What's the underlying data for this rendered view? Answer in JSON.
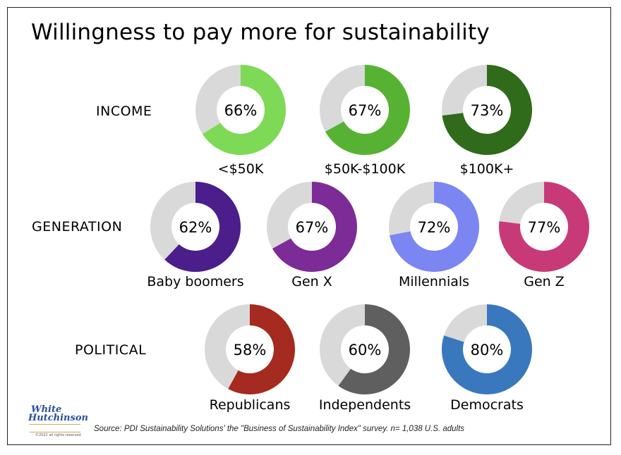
{
  "title": "Willingness to pay more for sustainability",
  "source": "Source: PDI Sustainability Solutions' the \"Business of Sustainability Index\" survey. n= 1,038 U.S. adults",
  "logo": {
    "line1": "White",
    "line2": "Hutchinson",
    "copyright": "©2022 all rights reserved"
  },
  "colors": {
    "remainder": "#d9d9d9",
    "income_low": "#7ed957",
    "income_mid": "#57b233",
    "income_high": "#2f6b1a",
    "boomers": "#4b1e8c",
    "genx": "#7d2b96",
    "millennials": "#7b86f2",
    "genz": "#c73a77",
    "republicans": "#a52a1f",
    "independents": "#5f5f5f",
    "democrats": "#3a78bd"
  },
  "chart_data": [
    {
      "type": "pie",
      "variant": "donut",
      "group": "INCOME",
      "categories": [
        "<$50K",
        "$50K-$100K",
        "$100K+"
      ],
      "values": [
        66,
        67,
        73
      ],
      "value_labels": [
        "66%",
        "67%",
        "73%"
      ],
      "colors": [
        "#7ed957",
        "#57b233",
        "#2f6b1a"
      ]
    },
    {
      "type": "pie",
      "variant": "donut",
      "group": "GENERATION",
      "categories": [
        "Baby boomers",
        "Gen X",
        "Millennials",
        "Gen Z"
      ],
      "values": [
        62,
        67,
        72,
        77
      ],
      "value_labels": [
        "62%",
        "67%",
        "72%",
        "77%"
      ],
      "colors": [
        "#4b1e8c",
        "#7d2b96",
        "#7b86f2",
        "#c73a77"
      ]
    },
    {
      "type": "pie",
      "variant": "donut",
      "group": "POLITICAL",
      "categories": [
        "Republicans",
        "Independents",
        "Democrats"
      ],
      "values": [
        58,
        60,
        80
      ],
      "value_labels": [
        "58%",
        "60%",
        "80%"
      ],
      "colors": [
        "#a52a1f",
        "#5f5f5f",
        "#3a78bd"
      ]
    }
  ]
}
